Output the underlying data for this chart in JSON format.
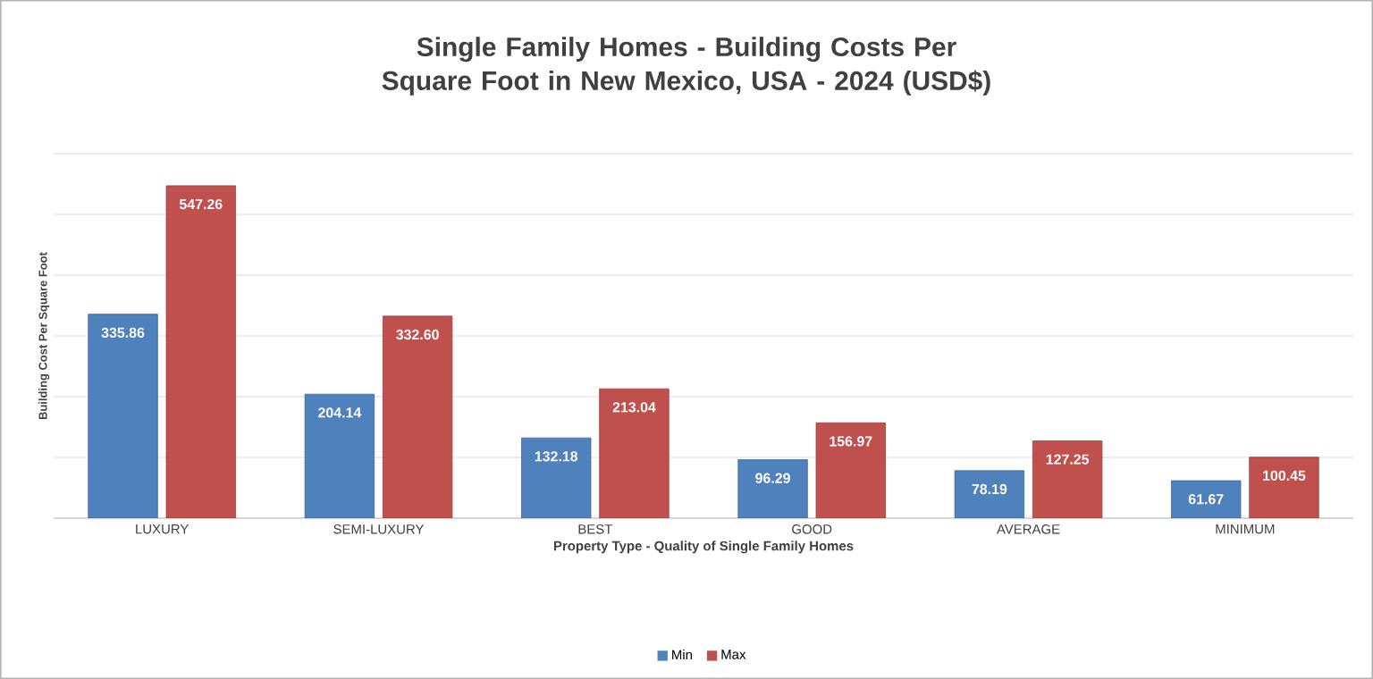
{
  "chart_data": {
    "type": "bar",
    "title": "Single Family Homes - Building Costs Per Square Foot in New Mexico, USA - 2024 (USD$)",
    "xlabel": "Property Type - Quality of Single Family Homes",
    "ylabel": "Building Cost Per Square Foot",
    "categories": [
      "LUXURY",
      "SEMI-LUXURY",
      "BEST",
      "GOOD",
      "AVERAGE",
      "MINIMUM"
    ],
    "series": [
      {
        "name": "Min",
        "color": "#4f81bd",
        "values": [
          335.86,
          204.14,
          132.18,
          96.29,
          78.19,
          61.67
        ],
        "value_labels": [
          "335.86",
          "204.14",
          "132.18",
          "96.29",
          "78.19",
          "61.67"
        ]
      },
      {
        "name": "Max",
        "color": "#c0504d",
        "values": [
          547.26,
          332.6,
          213.04,
          156.97,
          127.25,
          100.45
        ],
        "value_labels": [
          "547.26",
          "332.60",
          "213.04",
          "156.97",
          "127.25",
          "100.45"
        ]
      }
    ],
    "ylim": [
      0,
      600
    ],
    "yticks": [
      {
        "value": 0,
        "label": null
      },
      {
        "value": 100,
        "label": null
      },
      {
        "value": 200,
        "label": null
      },
      {
        "value": 300,
        "label": null
      },
      {
        "value": 400,
        "label": null
      },
      {
        "value": 500,
        "label": null
      },
      {
        "value": 600,
        "label": null
      }
    ],
    "grid": "y",
    "legend": "bottom",
    "tick_labels": "x"
  }
}
